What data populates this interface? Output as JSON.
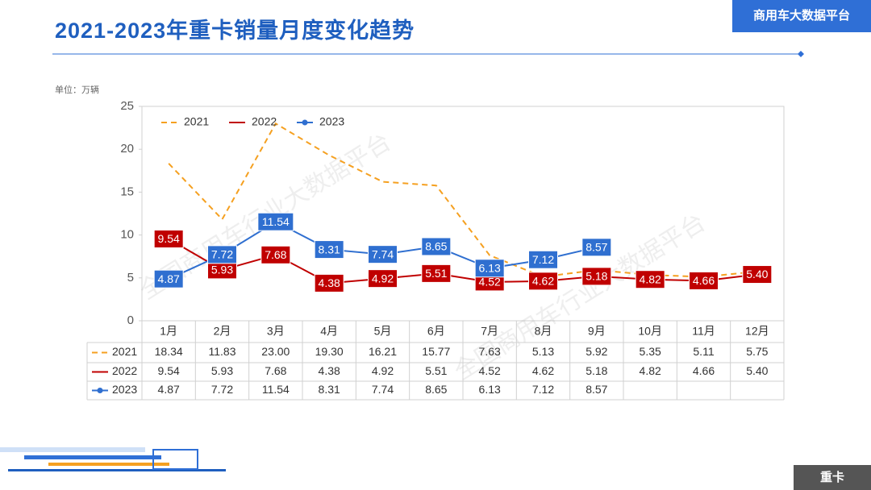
{
  "header": {
    "brand": "商用车大数据平台"
  },
  "footer": {
    "tag": "重卡"
  },
  "watermark": "全国商用车行业大数据平台",
  "chart_data": {
    "type": "line",
    "title": "2021-2023年重卡销量月度变化趋势",
    "unit": "单位：万辆",
    "categories": [
      "1月",
      "2月",
      "3月",
      "4月",
      "5月",
      "6月",
      "7月",
      "8月",
      "9月",
      "10月",
      "11月",
      "12月"
    ],
    "ylim": [
      0,
      25
    ],
    "yticks": [
      0,
      5,
      10,
      15,
      20,
      25
    ],
    "grid": false,
    "legend": "top-left",
    "series": [
      {
        "name": "2021",
        "color": "#f5a020",
        "style": "dashed",
        "values": [
          18.34,
          11.83,
          23,
          19.3,
          16.21,
          15.77,
          7.63,
          5.13,
          5.92,
          5.35,
          5.11,
          5.75
        ],
        "value_labels": [
          "18.34",
          "11.83",
          "23.00",
          "19.30",
          "16.21",
          "15.77",
          "7.63",
          "5.13",
          "5.92",
          "5.35",
          "5.11",
          "5.75"
        ]
      },
      {
        "name": "2022",
        "color": "#c00000",
        "style": "solid",
        "values": [
          9.54,
          5.93,
          7.68,
          4.38,
          4.92,
          5.51,
          4.52,
          4.62,
          5.18,
          4.82,
          4.66,
          5.4
        ],
        "value_labels": [
          "9.54",
          "5.93",
          "7.68",
          "4.38",
          "4.92",
          "5.51",
          "4.52",
          "4.62",
          "5.18",
          "4.82",
          "4.66",
          "5.40"
        ]
      },
      {
        "name": "2023",
        "color": "#2f6fd0",
        "style": "marker",
        "values": [
          4.87,
          7.72,
          11.54,
          8.31,
          7.74,
          8.65,
          6.13,
          7.12,
          8.57,
          null,
          null,
          null
        ],
        "value_labels": [
          "4.87",
          "7.72",
          "11.54",
          "8.31",
          "7.74",
          "8.65",
          "6.13",
          "7.12",
          "8.57",
          null,
          null,
          null
        ]
      }
    ]
  }
}
